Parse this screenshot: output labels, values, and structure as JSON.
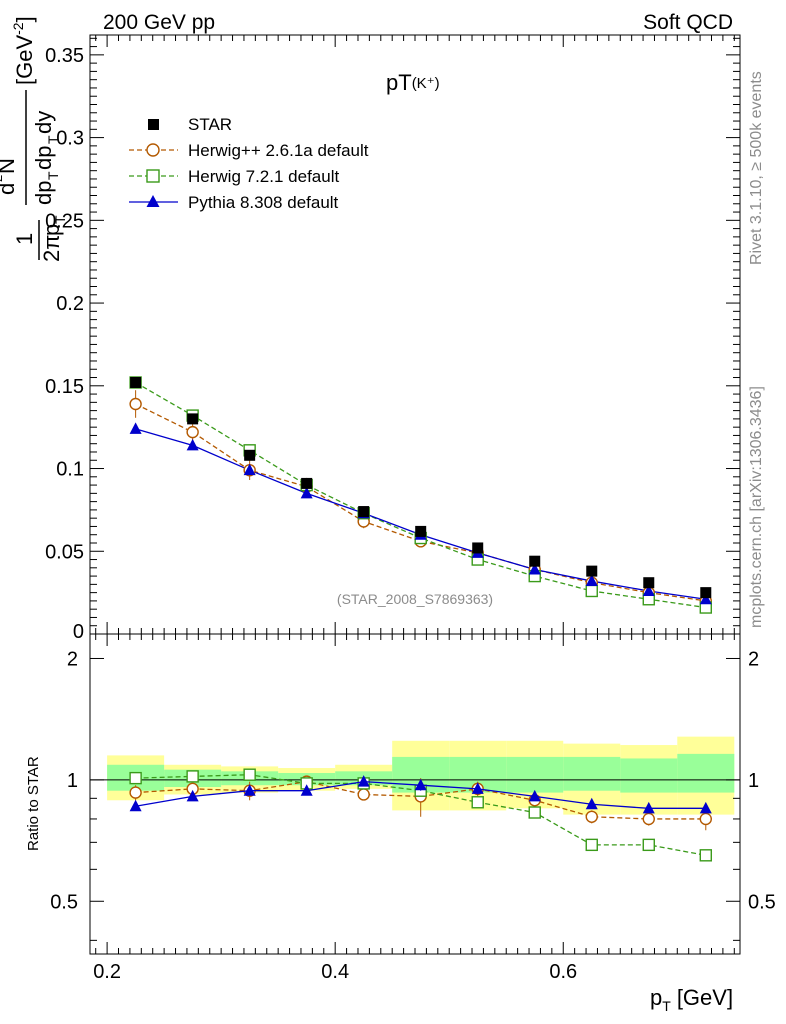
{
  "header": {
    "left": "200 GeV pp",
    "right": "Soft QCD",
    "plot_title": "pT",
    "plot_title_particle": "(K⁺)"
  },
  "watermarks": {
    "rivet": "Rivet 3.1.10, ≥ 500k events",
    "mcplots": "mcplots.cern.ch [arXiv:1306.3436]",
    "analysis": "(STAR_2008_S7869363)"
  },
  "axes": {
    "xlabel": "p",
    "xlabel_sub": "T",
    "xlabel_unit": "[GeV]",
    "ratio_ylabel": "Ratio to STAR",
    "main_ylabel_unit": "[GeV",
    "main_ylabel_exp": "-2",
    "main_ylabel_close": "]"
  },
  "colors": {
    "star": "#000000",
    "herwigpp": "#b35900",
    "herwig7": "#3a9a1a",
    "pythia": "#0000cc",
    "band_yellow": "#ffff99",
    "band_green": "#99ff99"
  },
  "chart_data": [
    {
      "type": "scatter",
      "panel": "main",
      "title": "pT",
      "xlim": [
        0.185,
        0.755
      ],
      "ylim": [
        0,
        0.362
      ],
      "xticks": [
        0.2,
        0.4,
        0.6
      ],
      "xtick_labels": [
        "0.2",
        "0.4",
        "0.6"
      ],
      "yticks": [
        0.05,
        0.1,
        0.15,
        0.2,
        0.25,
        0.3,
        0.35
      ],
      "ytick_labels": [
        "0.05",
        "0.1",
        "0.15",
        "0.2",
        "0.25",
        "0.3",
        "0.35"
      ],
      "x": [
        0.225,
        0.275,
        0.325,
        0.375,
        0.425,
        0.475,
        0.525,
        0.575,
        0.625,
        0.675,
        0.725
      ],
      "series": [
        {
          "name": "STAR",
          "style": "square-filled",
          "values": [
            0.152,
            0.13,
            0.108,
            0.091,
            0.074,
            0.062,
            0.052,
            0.044,
            0.038,
            0.031,
            0.025
          ]
        },
        {
          "name": "Herwig++ 2.6.1a default",
          "style": "circle-open-dashed",
          "values": [
            0.139,
            0.122,
            0.099,
            0.089,
            0.068,
            0.056,
            0.049,
            0.039,
            0.031,
            0.025,
            0.02
          ]
        },
        {
          "name": "Herwig 7.2.1 default",
          "style": "square-open-dashed",
          "values": [
            0.152,
            0.132,
            0.111,
            0.09,
            0.073,
            0.058,
            0.045,
            0.035,
            0.026,
            0.021,
            0.016
          ]
        },
        {
          "name": "Pythia 8.308 default",
          "style": "triangle-filled-solid",
          "values": [
            0.124,
            0.114,
            0.099,
            0.085,
            0.073,
            0.06,
            0.049,
            0.039,
            0.032,
            0.026,
            0.021
          ]
        }
      ]
    },
    {
      "type": "line",
      "panel": "ratio",
      "ylabel": "Ratio to STAR",
      "ylog": true,
      "xlim": [
        0.185,
        0.755
      ],
      "ylim": [
        0.37,
        2.3
      ],
      "yticks": [
        0.5,
        1,
        2
      ],
      "ytick_labels": [
        "0.5",
        "1",
        "2"
      ],
      "x": [
        0.225,
        0.275,
        0.325,
        0.375,
        0.425,
        0.475,
        0.525,
        0.575,
        0.625,
        0.675,
        0.725
      ],
      "band_edges": [
        0.2,
        0.25,
        0.3,
        0.35,
        0.4,
        0.45,
        0.5,
        0.55,
        0.6,
        0.65,
        0.7,
        0.75
      ],
      "band_yellow": [
        [
          0.89,
          1.15
        ],
        [
          0.92,
          1.09
        ],
        [
          0.93,
          1.08
        ],
        [
          0.94,
          1.07
        ],
        [
          0.95,
          1.09
        ],
        [
          0.84,
          1.25
        ],
        [
          0.84,
          1.25
        ],
        [
          0.85,
          1.25
        ],
        [
          0.82,
          1.23
        ],
        [
          0.82,
          1.22
        ],
        [
          0.82,
          1.28
        ]
      ],
      "band_green": [
        [
          0.94,
          1.09
        ],
        [
          0.96,
          1.06
        ],
        [
          0.97,
          1.05
        ],
        [
          0.97,
          1.04
        ],
        [
          0.97,
          1.05
        ],
        [
          0.93,
          1.14
        ],
        [
          0.93,
          1.14
        ],
        [
          0.93,
          1.14
        ],
        [
          0.94,
          1.14
        ],
        [
          0.93,
          1.13
        ],
        [
          0.93,
          1.16
        ]
      ],
      "series": [
        {
          "name": "Herwig++ 2.6.1a default",
          "values": [
            0.93,
            0.95,
            0.94,
            0.99,
            0.92,
            0.91,
            0.95,
            0.89,
            0.81,
            0.8,
            0.8
          ],
          "err": [
            0.04,
            0.03,
            0.05,
            0.03,
            0.03,
            0.1,
            0.04,
            0.04,
            0.03,
            0.03,
            0.05
          ]
        },
        {
          "name": "Herwig 7.2.1 default",
          "values": [
            1.01,
            1.02,
            1.03,
            0.98,
            0.98,
            0.94,
            0.88,
            0.83,
            0.69,
            0.69,
            0.65
          ],
          "err": [
            0.01,
            0.01,
            0.01,
            0.01,
            0.01,
            0.01,
            0.01,
            0.01,
            0.01,
            0.01,
            0.01
          ]
        },
        {
          "name": "Pythia 8.308 default",
          "values": [
            0.86,
            0.91,
            0.94,
            0.94,
            0.99,
            0.97,
            0.95,
            0.91,
            0.87,
            0.85,
            0.85
          ],
          "err": [
            0.01,
            0.01,
            0.02,
            0.01,
            0.01,
            0.03,
            0.03,
            0.02,
            0.01,
            0.01,
            0.01
          ]
        }
      ]
    }
  ]
}
